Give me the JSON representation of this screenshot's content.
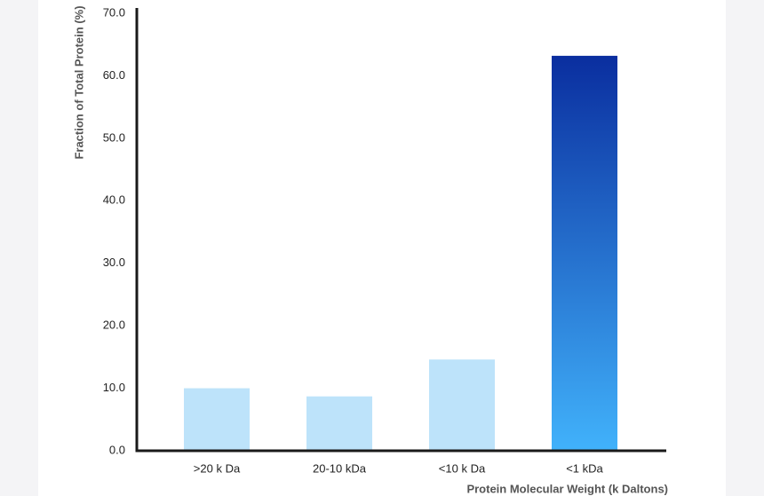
{
  "chart_data": {
    "type": "bar",
    "x_label": "Protein Molecular Weight (k Daltons)",
    "y_label": "Fraction of Total Protein (%)",
    "categories": [
      ">20 k Da",
      "20-10 kDa",
      "<10 k Da",
      "<1 kDa"
    ],
    "values": [
      10.0,
      8.7,
      14.6,
      63.2
    ],
    "colors": [
      "#bde3fa",
      "#bde3fa",
      "#bde3fa",
      [
        "#0a2e9f",
        "#41b2fb"
      ]
    ],
    "ylim": [
      0,
      70
    ],
    "yticks": [
      {
        "value": 0,
        "label": "0.0"
      },
      {
        "value": 10,
        "label": "10.0"
      },
      {
        "value": 20,
        "label": "20.0"
      },
      {
        "value": 30,
        "label": "30.0"
      },
      {
        "value": 40,
        "label": "40.0"
      },
      {
        "value": 50,
        "label": "50.0"
      },
      {
        "value": 60,
        "label": "60.0"
      },
      {
        "value": 70,
        "label": "70.0"
      }
    ],
    "grid": false
  }
}
